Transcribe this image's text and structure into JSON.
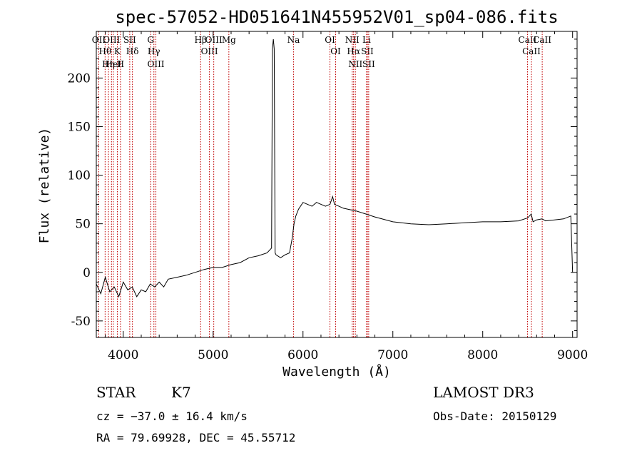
{
  "chart_data": {
    "type": "line",
    "title": "spec-57052-HD051641N455952V01_sp04-086.fits",
    "xlabel": "Wavelength (Å)",
    "ylabel": "Flux (relative)",
    "xlim": [
      3700,
      9050
    ],
    "ylim": [
      -67,
      248
    ],
    "xticks": [
      4000,
      5000,
      6000,
      7000,
      8000,
      9000
    ],
    "yticks": [
      -50,
      0,
      50,
      100,
      150,
      200
    ],
    "spectrum": {
      "x": [
        3700,
        3750,
        3800,
        3850,
        3900,
        3950,
        4000,
        4050,
        4100,
        4150,
        4200,
        4250,
        4300,
        4350,
        4400,
        4450,
        4500,
        4600,
        4700,
        4800,
        4900,
        5000,
        5100,
        5200,
        5300,
        5400,
        5500,
        5600,
        5650,
        5660,
        5670,
        5680,
        5690,
        5700,
        5750,
        5800,
        5850,
        5880,
        5900,
        5920,
        5950,
        6000,
        6050,
        6100,
        6150,
        6200,
        6250,
        6300,
        6330,
        6350,
        6400,
        6450,
        6500,
        6550,
        6600,
        6700,
        6800,
        7000,
        7200,
        7400,
        7600,
        7800,
        8000,
        8200,
        8400,
        8500,
        8540,
        8560,
        8600,
        8660,
        8700,
        8800,
        8900,
        8980,
        8990,
        9000
      ],
      "y": [
        -12,
        -22,
        -5,
        -20,
        -15,
        -25,
        -10,
        -18,
        -15,
        -25,
        -18,
        -20,
        -12,
        -15,
        -10,
        -15,
        -7,
        -5,
        -3,
        0,
        3,
        5,
        5,
        8,
        10,
        15,
        17,
        20,
        25,
        230,
        240,
        230,
        20,
        18,
        15,
        18,
        20,
        35,
        50,
        58,
        65,
        72,
        70,
        68,
        72,
        70,
        68,
        70,
        78,
        70,
        68,
        66,
        65,
        64,
        63,
        60,
        57,
        52,
        50,
        49,
        50,
        51,
        52,
        52,
        53,
        56,
        60,
        52,
        54,
        55,
        53,
        54,
        55,
        58,
        30,
        0
      ]
    },
    "lines": [
      {
        "label": "Hθ",
        "x": 3798
      },
      {
        "label": "OII",
        "x": 3727
      },
      {
        "label": "OIII",
        "x": 3869
      },
      {
        "label": "HeI",
        "x": 3889
      },
      {
        "label": "Hη",
        "x": 3835
      },
      {
        "label": "K",
        "x": 3934
      },
      {
        "label": "H",
        "x": 3969
      },
      {
        "label": "SII",
        "x": 4072
      },
      {
        "label": "Hδ",
        "x": 4102
      },
      {
        "label": "OIII",
        "x": 4363
      },
      {
        "label": "Hγ",
        "x": 4341
      },
      {
        "label": "G",
        "x": 4305
      },
      {
        "label": "Hβ",
        "x": 4861
      },
      {
        "label": "OIII",
        "x": 4959
      },
      {
        "label": "OIII",
        "x": 5007
      },
      {
        "label": "Mg",
        "x": 5175
      },
      {
        "label": "Na",
        "x": 5894
      },
      {
        "label": "OI",
        "x": 6300
      },
      {
        "label": "OI",
        "x": 6363
      },
      {
        "label": "Hα",
        "x": 6563
      },
      {
        "label": "NII",
        "x": 6548
      },
      {
        "label": "NII",
        "x": 6583
      },
      {
        "label": "SII",
        "x": 6716
      },
      {
        "label": "Li",
        "x": 6708
      },
      {
        "label": "SII",
        "x": 6731
      },
      {
        "label": "CaII",
        "x": 8498
      },
      {
        "label": "CaII",
        "x": 8542
      },
      {
        "label": "CaII",
        "x": 8662
      }
    ],
    "grid": false,
    "legend": "none"
  },
  "info": {
    "class": "STAR",
    "subclass": "K7",
    "survey": "LAMOST DR3",
    "cz": "cz = −37.0 ± 16.4 km/s",
    "obs_date": "Obs-Date: 20150129",
    "coords": "RA =  79.69928, DEC =  45.55712"
  },
  "colors": {
    "axes": "#000000",
    "spectrum": "#000000",
    "line_marker": "#c00000"
  }
}
